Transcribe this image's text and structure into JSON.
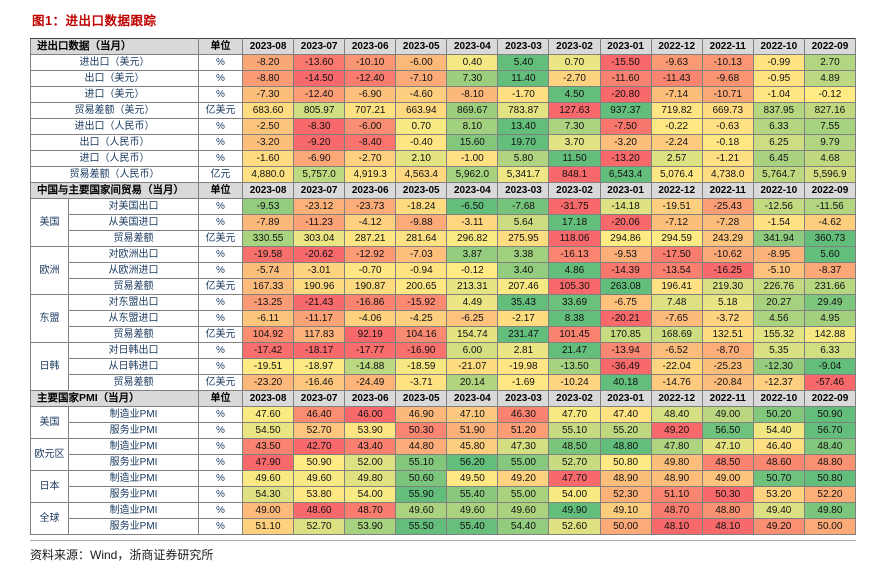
{
  "title": "图1：进出口数据跟踪",
  "source": "资料来源：Wind，浙商证券研究所",
  "colors": {
    "title_red": "#C00000",
    "label_blue": "#17375E",
    "header_gray": "#D9D9D9"
  },
  "chart_data": {
    "type": "table",
    "title": "进出口数据跟踪",
    "unit_header": "单位",
    "heatmap": {
      "low": "#F8696B",
      "mid": "#FFEB84",
      "high": "#63BE7B"
    },
    "months": [
      "2023-08",
      "2023-07",
      "2023-06",
      "2023-05",
      "2023-04",
      "2023-03",
      "2023-02",
      "2023-01",
      "2022-12",
      "2022-11",
      "2022-10",
      "2022-09"
    ],
    "sections": [
      {
        "header": "进出口数据（当月）",
        "flat": true,
        "rows": [
          {
            "label": "进出口（美元）",
            "unit": "%",
            "values": [
              "-8.20",
              "-13.60",
              "-10.10",
              "-6.00",
              "0.40",
              "5.40",
              "0.70",
              "-15.50",
              "-9.63",
              "-10.13",
              "-0.99",
              "2.70"
            ]
          },
          {
            "label": "出口（美元）",
            "unit": "%",
            "values": [
              "-8.80",
              "-14.50",
              "-12.40",
              "-7.10",
              "7.30",
              "11.40",
              "-2.70",
              "-11.60",
              "-11.43",
              "-9.68",
              "-0.95",
              "4.89"
            ]
          },
          {
            "label": "进口（美元）",
            "unit": "%",
            "values": [
              "-7.30",
              "-12.40",
              "-6.90",
              "-4.60",
              "-8.10",
              "-1.70",
              "4.50",
              "-20.80",
              "-7.14",
              "-10.71",
              "-1.04",
              "-0.12"
            ]
          },
          {
            "label": "贸易差额（美元）",
            "unit": "亿美元",
            "values": [
              "683.60",
              "805.97",
              "707.21",
              "663.94",
              "869.67",
              "783.87",
              "127.63",
              "937.37",
              "719.82",
              "669.73",
              "837.95",
              "827.16"
            ]
          },
          {
            "label": "进出口（人民币）",
            "unit": "%",
            "values": [
              "-2.50",
              "-8.30",
              "-6.00",
              "0.70",
              "8.10",
              "13.40",
              "7.30",
              "-7.50",
              "-0.22",
              "-0.63",
              "6.33",
              "7.55"
            ]
          },
          {
            "label": "出口（人民币）",
            "unit": "%",
            "values": [
              "-3.20",
              "-9.20",
              "-8.40",
              "-0.40",
              "15.60",
              "19.70",
              "3.70",
              "-3.20",
              "-2.24",
              "-0.18",
              "6.25",
              "9.79"
            ]
          },
          {
            "label": "进口（人民币）",
            "unit": "%",
            "values": [
              "-1.60",
              "-6.90",
              "-2.70",
              "2.10",
              "-1.00",
              "5.80",
              "11.50",
              "-13.20",
              "2.57",
              "-1.21",
              "6.45",
              "4.68"
            ]
          },
          {
            "label": "贸易差额（人民币）",
            "unit": "亿元",
            "values": [
              "4,880.0",
              "5,757.0",
              "4,919.3",
              "4,563.4",
              "5,962.0",
              "5,341.7",
              "848.1",
              "6,543.4",
              "5,076.4",
              "4,738.0",
              "5,764.7",
              "5,596.9"
            ]
          }
        ]
      },
      {
        "header": "中国与主要国家间贸易（当月）",
        "flat": false,
        "rows": [
          {
            "group": "美国",
            "span": 3,
            "label": "对美国出口",
            "unit": "%",
            "values": [
              "-9.53",
              "-23.12",
              "-23.73",
              "-18.24",
              "-6.50",
              "-7.68",
              "-31.75",
              "-14.18",
              "-19.51",
              "-25.43",
              "-12.56",
              "-11.56"
            ]
          },
          {
            "label": "从美国进口",
            "unit": "%",
            "values": [
              "-7.89",
              "-11.23",
              "-4.12",
              "-9.88",
              "-3.11",
              "5.64",
              "17.18",
              "-20.06",
              "-7.12",
              "-7.28",
              "-1.54",
              "-4.62"
            ]
          },
          {
            "label": "贸易差额",
            "unit": "亿美元",
            "values": [
              "330.55",
              "303.04",
              "287.21",
              "281.64",
              "296.82",
              "275.95",
              "118.06",
              "294.86",
              "294.59",
              "243.29",
              "341.94",
              "360.73"
            ]
          },
          {
            "group": "欧洲",
            "span": 3,
            "label": "对欧洲出口",
            "unit": "%",
            "values": [
              "-19.58",
              "-20.62",
              "-12.92",
              "-7.03",
              "3.87",
              "3.38",
              "-16.13",
              "-9.53",
              "-17.50",
              "-10.62",
              "-8.95",
              "5.60"
            ]
          },
          {
            "label": "从欧洲进口",
            "unit": "%",
            "values": [
              "-5.74",
              "-3.01",
              "-0.70",
              "-0.94",
              "-0.12",
              "3.40",
              "4.86",
              "-14.39",
              "-13.54",
              "-16.25",
              "-5.10",
              "-8.37"
            ]
          },
          {
            "label": "贸易差额",
            "unit": "亿美元",
            "values": [
              "167.33",
              "190.96",
              "190.87",
              "200.65",
              "213.31",
              "207.46",
              "105.30",
              "263.08",
              "196.41",
              "219.30",
              "226.76",
              "231.66"
            ]
          },
          {
            "group": "东盟",
            "span": 3,
            "label": "对东盟出口",
            "unit": "%",
            "values": [
              "-13.25",
              "-21.43",
              "-16.86",
              "-15.92",
              "4.49",
              "35.43",
              "33.69",
              "-6.75",
              "7.48",
              "5.18",
              "20.27",
              "29.49"
            ]
          },
          {
            "label": "从东盟进口",
            "unit": "%",
            "values": [
              "-6.11",
              "-11.17",
              "-4.06",
              "-4.25",
              "-6.25",
              "-2.17",
              "8.38",
              "-20.21",
              "-7.65",
              "-3.72",
              "4.56",
              "4.95"
            ]
          },
          {
            "label": "贸易差额",
            "unit": "亿美元",
            "values": [
              "104.92",
              "117.83",
              "92.19",
              "104.16",
              "154.74",
              "231.47",
              "101.45",
              "170.85",
              "168.69",
              "132.51",
              "155.32",
              "142.88"
            ]
          },
          {
            "group": "日韩",
            "span": 3,
            "label": "对日韩出口",
            "unit": "%",
            "values": [
              "-17.42",
              "-18.17",
              "-17.77",
              "-16.90",
              "6.00",
              "2.81",
              "21.47",
              "-13.94",
              "-6.52",
              "-8.70",
              "5.35",
              "6.33"
            ]
          },
          {
            "label": "从日韩进口",
            "unit": "%",
            "values": [
              "-19.51",
              "-18.97",
              "-14.88",
              "-18.59",
              "-21.07",
              "-19.98",
              "-13.50",
              "-36.49",
              "-22.04",
              "-25.23",
              "-12.30",
              "-9.04"
            ]
          },
          {
            "label": "贸易差额",
            "unit": "亿美元",
            "values": [
              "-23.20",
              "-16.46",
              "-24.49",
              "-3.71",
              "20.14",
              "-1.69",
              "-10.24",
              "40.18",
              "-14.76",
              "-20.84",
              "-12.37",
              "-57.46"
            ]
          }
        ]
      },
      {
        "header": "主要国家PMI（当月）",
        "flat": false,
        "rows": [
          {
            "group": "美国",
            "span": 2,
            "label": "制造业PMI",
            "unit": "%",
            "values": [
              "47.60",
              "46.40",
              "46.00",
              "46.90",
              "47.10",
              "46.30",
              "47.70",
              "47.40",
              "48.40",
              "49.00",
              "50.20",
              "50.90"
            ]
          },
          {
            "label": "服务业PMI",
            "unit": "%",
            "values": [
              "54.50",
              "52.70",
              "53.90",
              "50.30",
              "51.90",
              "51.20",
              "55.10",
              "55.20",
              "49.20",
              "56.50",
              "54.40",
              "56.70"
            ]
          },
          {
            "group": "欧元区",
            "span": 2,
            "label": "制造业PMI",
            "unit": "%",
            "values": [
              "43.50",
              "42.70",
              "43.40",
              "44.80",
              "45.80",
              "47.30",
              "48.50",
              "48.80",
              "47.80",
              "47.10",
              "46.40",
              "48.40"
            ]
          },
          {
            "label": "服务业PMI",
            "unit": "%",
            "values": [
              "47.90",
              "50.90",
              "52.00",
              "55.10",
              "56.20",
              "55.00",
              "52.70",
              "50.80",
              "49.80",
              "48.50",
              "48.60",
              "48.80"
            ]
          },
          {
            "group": "日本",
            "span": 2,
            "label": "制造业PMI",
            "unit": "%",
            "values": [
              "49.60",
              "49.60",
              "49.80",
              "50.60",
              "49.50",
              "49.20",
              "47.70",
              "48.90",
              "48.90",
              "49.00",
              "50.70",
              "50.80"
            ]
          },
          {
            "label": "服务业PMI",
            "unit": "%",
            "values": [
              "54.30",
              "53.80",
              "54.00",
              "55.90",
              "55.40",
              "55.00",
              "54.00",
              "52.30",
              "51.10",
              "50.30",
              "53.20",
              "52.20"
            ]
          },
          {
            "group": "全球",
            "span": 2,
            "label": "制造业PMI",
            "unit": "%",
            "values": [
              "49.00",
              "48.60",
              "48.70",
              "49.60",
              "49.60",
              "49.60",
              "49.90",
              "49.10",
              "48.70",
              "48.80",
              "49.40",
              "49.80"
            ]
          },
          {
            "label": "服务业PMI",
            "unit": "%",
            "values": [
              "51.10",
              "52.70",
              "53.90",
              "55.50",
              "55.40",
              "54.40",
              "52.60",
              "50.00",
              "48.10",
              "48.10",
              "49.20",
              "50.00"
            ]
          }
        ]
      }
    ]
  }
}
